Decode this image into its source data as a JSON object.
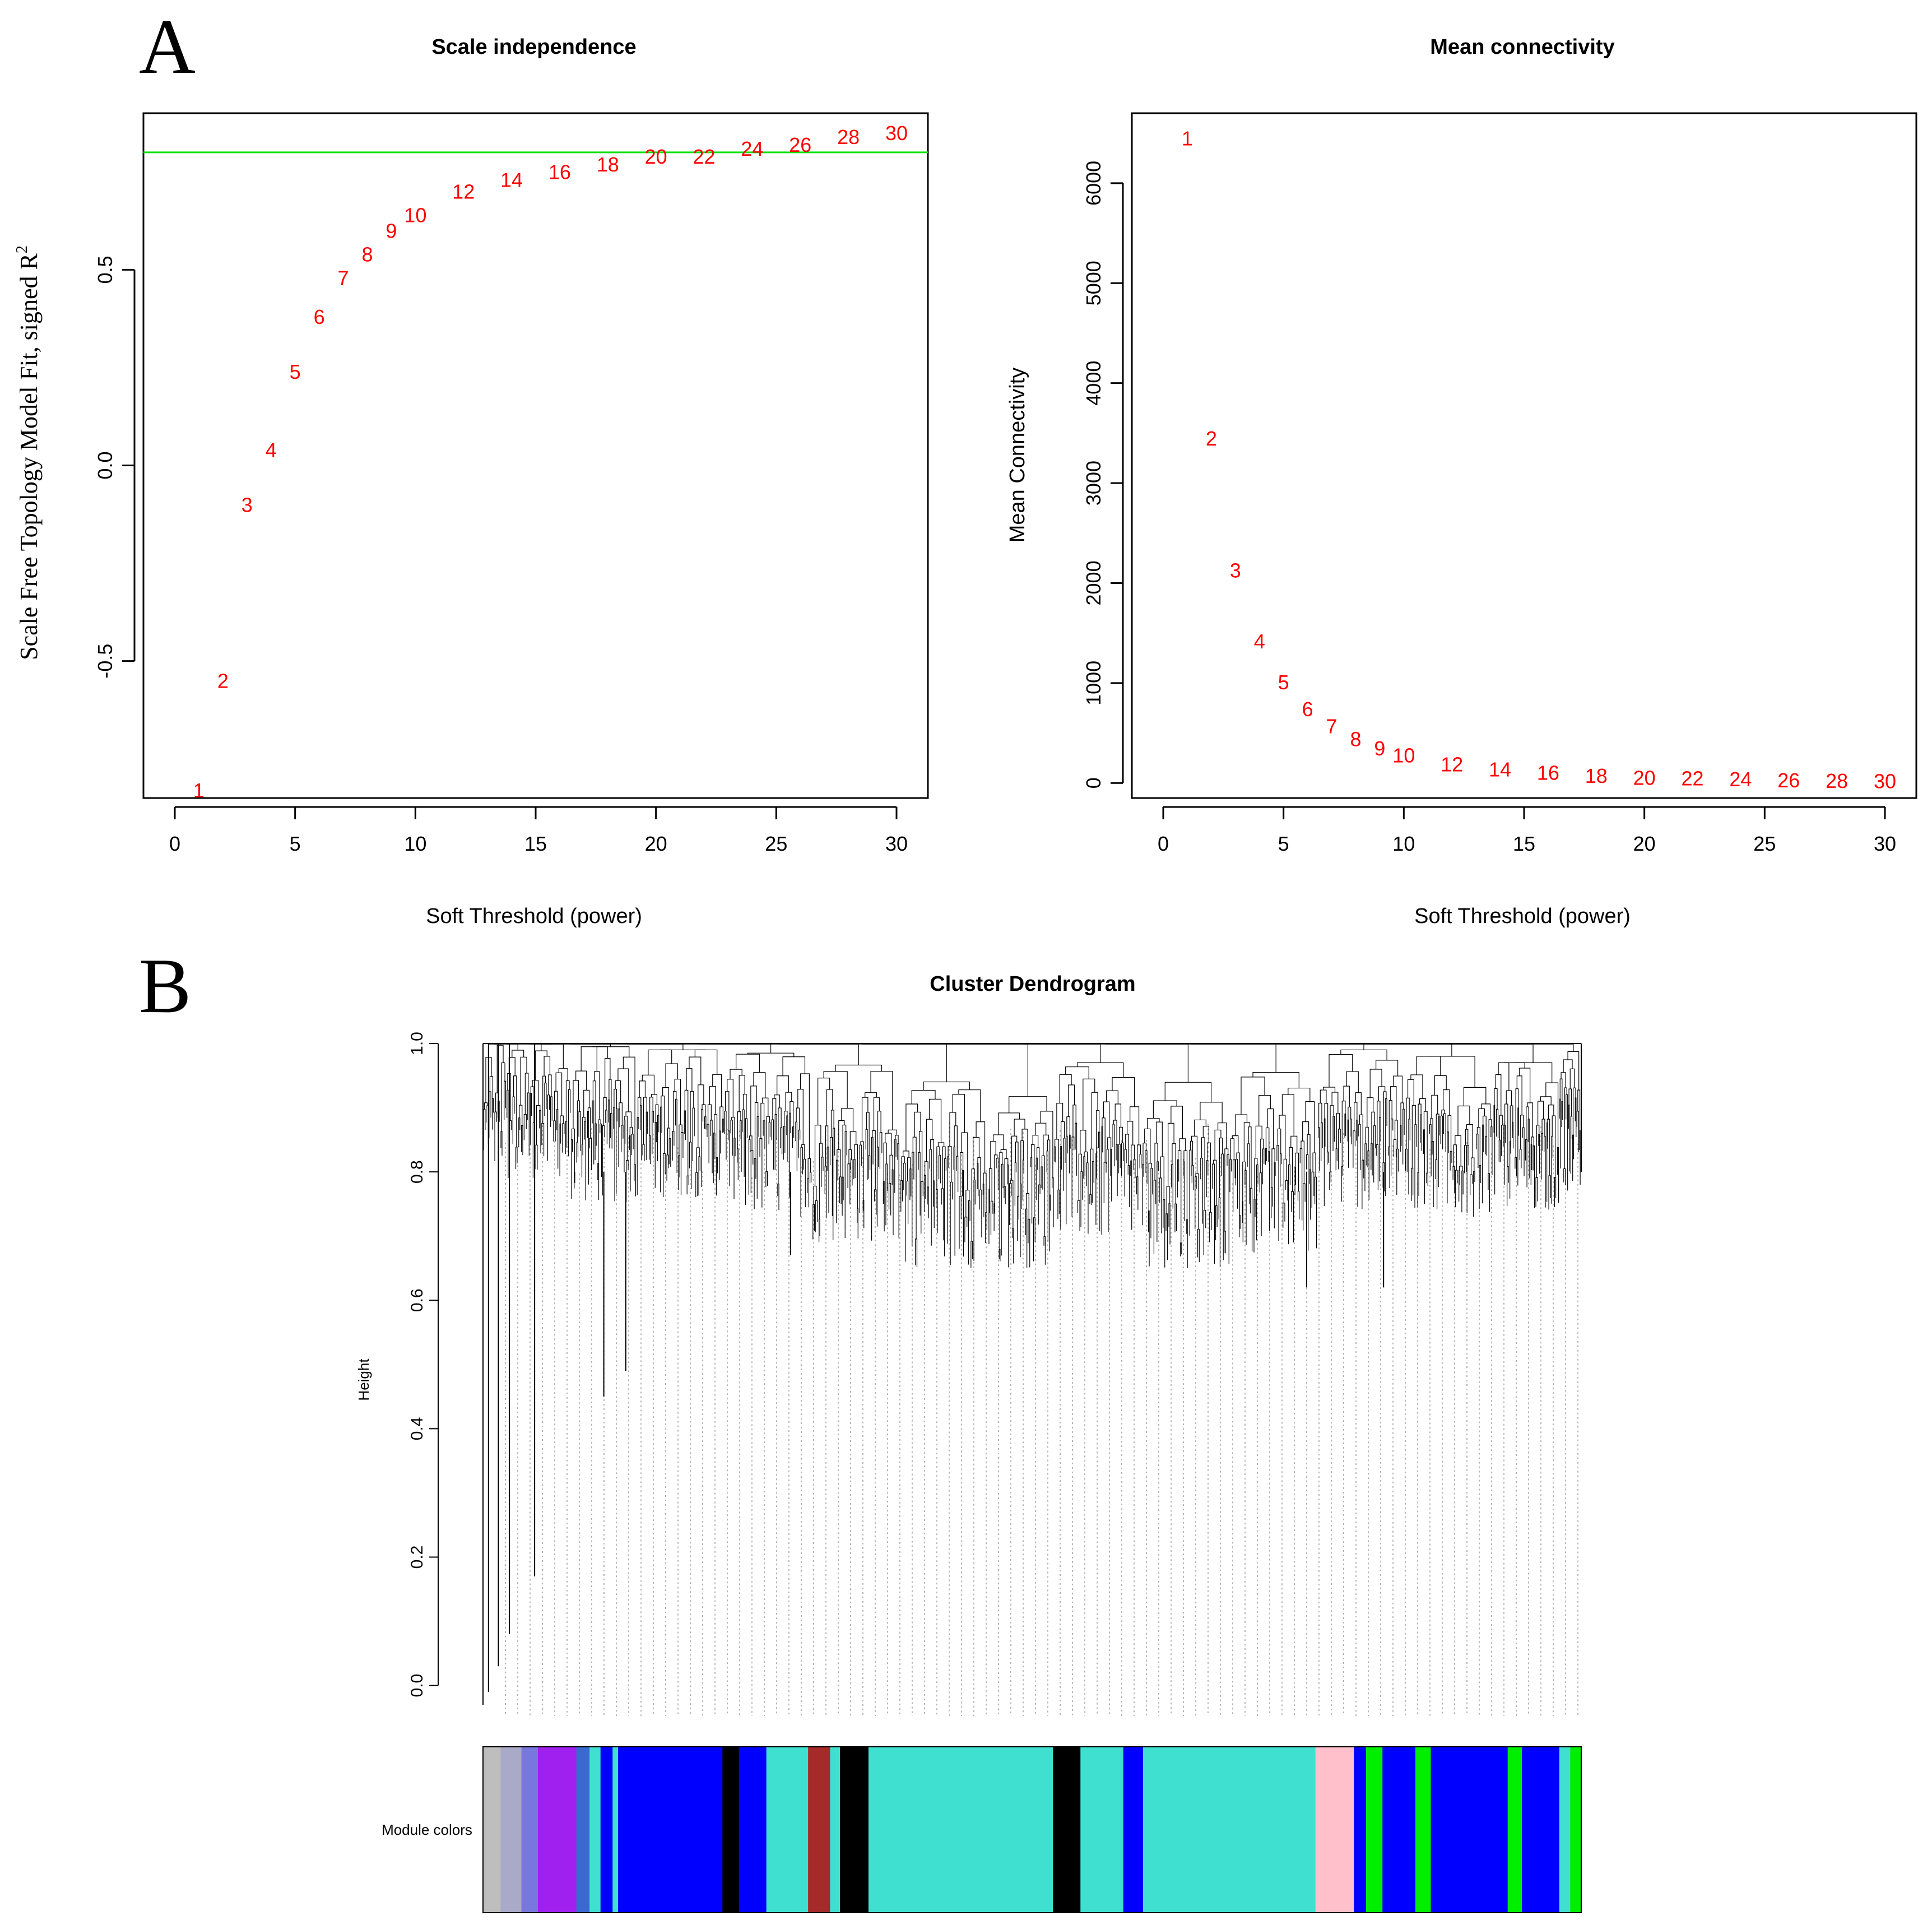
{
  "panel_letters": {
    "a": "A",
    "b": "B"
  },
  "colors": {
    "points": "#ff0000",
    "threshold": "#00e000",
    "axis": "#000000"
  },
  "chart_data": [
    {
      "id": "scale_independence",
      "type": "scatter",
      "marker": "text",
      "title": "Scale independence",
      "xlabel": "Soft Threshold (power)",
      "ylabel": "Scale Free Topology Model Fit, signed R",
      "ylabel_superscript": "2",
      "xlim": [
        0,
        30
      ],
      "ylim": [
        -0.85,
        0.9
      ],
      "x_ticks": [
        0,
        5,
        10,
        15,
        20,
        25,
        30
      ],
      "y_ticks": [
        -0.5,
        0.0,
        0.5
      ],
      "y_tick_labels": [
        "-0.5",
        "0.0",
        "0.5"
      ],
      "threshold_line": 0.8,
      "x": [
        1,
        2,
        3,
        4,
        5,
        6,
        7,
        8,
        9,
        10,
        12,
        14,
        16,
        18,
        20,
        22,
        24,
        26,
        28,
        30
      ],
      "y": [
        -0.83,
        -0.55,
        -0.1,
        0.04,
        0.24,
        0.38,
        0.48,
        0.54,
        0.6,
        0.64,
        0.7,
        0.73,
        0.75,
        0.77,
        0.79,
        0.79,
        0.81,
        0.82,
        0.84,
        0.85
      ],
      "point_labels": [
        "1",
        "2",
        "3",
        "4",
        "5",
        "6",
        "7",
        "8",
        "9",
        "10",
        "12",
        "14",
        "16",
        "18",
        "20",
        "22",
        "24",
        "26",
        "28",
        "30"
      ]
    },
    {
      "id": "mean_connectivity",
      "type": "scatter",
      "marker": "text",
      "title": "Mean connectivity",
      "xlabel": "Soft Threshold (power)",
      "ylabel": "Mean Connectivity",
      "xlim": [
        0,
        30
      ],
      "ylim": [
        -150,
        6700
      ],
      "x_ticks": [
        0,
        5,
        10,
        15,
        20,
        25,
        30
      ],
      "y_ticks": [
        0,
        1000,
        2000,
        3000,
        4000,
        5000,
        6000
      ],
      "y_tick_labels": [
        "0",
        "1000",
        "2000",
        "3000",
        "4000",
        "5000",
        "6000"
      ],
      "x": [
        1,
        2,
        3,
        4,
        5,
        6,
        7,
        8,
        9,
        10,
        12,
        14,
        16,
        18,
        20,
        22,
        24,
        26,
        28,
        30
      ],
      "y": [
        6450,
        3450,
        2130,
        1420,
        1010,
        740,
        570,
        440,
        350,
        280,
        190,
        140,
        105,
        75,
        55,
        50,
        40,
        30,
        25,
        20
      ],
      "point_labels": [
        "1",
        "2",
        "3",
        "4",
        "5",
        "6",
        "7",
        "8",
        "9",
        "10",
        "12",
        "14",
        "16",
        "18",
        "20",
        "22",
        "24",
        "26",
        "28",
        "30"
      ]
    },
    {
      "id": "cluster_dendrogram",
      "type": "dendrogram",
      "title": "Cluster Dendrogram",
      "ylabel": "Height",
      "ylim": [
        -0.03,
        1.0
      ],
      "y_ticks": [
        0.0,
        0.2,
        0.4,
        0.6,
        0.8,
        1.0
      ],
      "y_tick_labels": [
        "0.0",
        "0.2",
        "0.4",
        "0.6",
        "0.8",
        "1.0"
      ],
      "colorbar_label": "Module colors",
      "modules": [
        {
          "color": "#bebebe",
          "start": 0.0,
          "end": 0.016
        },
        {
          "color": "#a9a9c8",
          "start": 0.016,
          "end": 0.035
        },
        {
          "color": "#7777dd",
          "start": 0.035,
          "end": 0.05
        },
        {
          "color": "#a020f0",
          "start": 0.05,
          "end": 0.085
        },
        {
          "color": "#3a6ad0",
          "start": 0.085,
          "end": 0.097
        },
        {
          "color": "#40e0d0",
          "start": 0.097,
          "end": 0.107
        },
        {
          "color": "#0000ff",
          "start": 0.107,
          "end": 0.118
        },
        {
          "color": "#40e0d0",
          "start": 0.118,
          "end": 0.123
        },
        {
          "color": "#0000ff",
          "start": 0.123,
          "end": 0.218
        },
        {
          "color": "#000000",
          "start": 0.218,
          "end": 0.233
        },
        {
          "color": "#0000ff",
          "start": 0.233,
          "end": 0.258
        },
        {
          "color": "#40e0d0",
          "start": 0.258,
          "end": 0.296
        },
        {
          "color": "#a52a2a",
          "start": 0.296,
          "end": 0.316
        },
        {
          "color": "#40e0d0",
          "start": 0.316,
          "end": 0.325
        },
        {
          "color": "#000000",
          "start": 0.325,
          "end": 0.351
        },
        {
          "color": "#40e0d0",
          "start": 0.351,
          "end": 0.519
        },
        {
          "color": "#000000",
          "start": 0.519,
          "end": 0.544
        },
        {
          "color": "#40e0d0",
          "start": 0.544,
          "end": 0.583
        },
        {
          "color": "#0000ff",
          "start": 0.583,
          "end": 0.601
        },
        {
          "color": "#40e0d0",
          "start": 0.601,
          "end": 0.758
        },
        {
          "color": "#ffc0cb",
          "start": 0.758,
          "end": 0.793
        },
        {
          "color": "#0000ff",
          "start": 0.793,
          "end": 0.804
        },
        {
          "color": "#00ee00",
          "start": 0.804,
          "end": 0.819
        },
        {
          "color": "#0000ff",
          "start": 0.819,
          "end": 0.849
        },
        {
          "color": "#00ee00",
          "start": 0.849,
          "end": 0.863
        },
        {
          "color": "#0000ff",
          "start": 0.863,
          "end": 0.933
        },
        {
          "color": "#00ee00",
          "start": 0.933,
          "end": 0.946
        },
        {
          "color": "#0000ff",
          "start": 0.946,
          "end": 0.98
        },
        {
          "color": "#40e0d0",
          "start": 0.98,
          "end": 0.99
        },
        {
          "color": "#00ee00",
          "start": 0.99,
          "end": 1.0
        }
      ]
    }
  ]
}
